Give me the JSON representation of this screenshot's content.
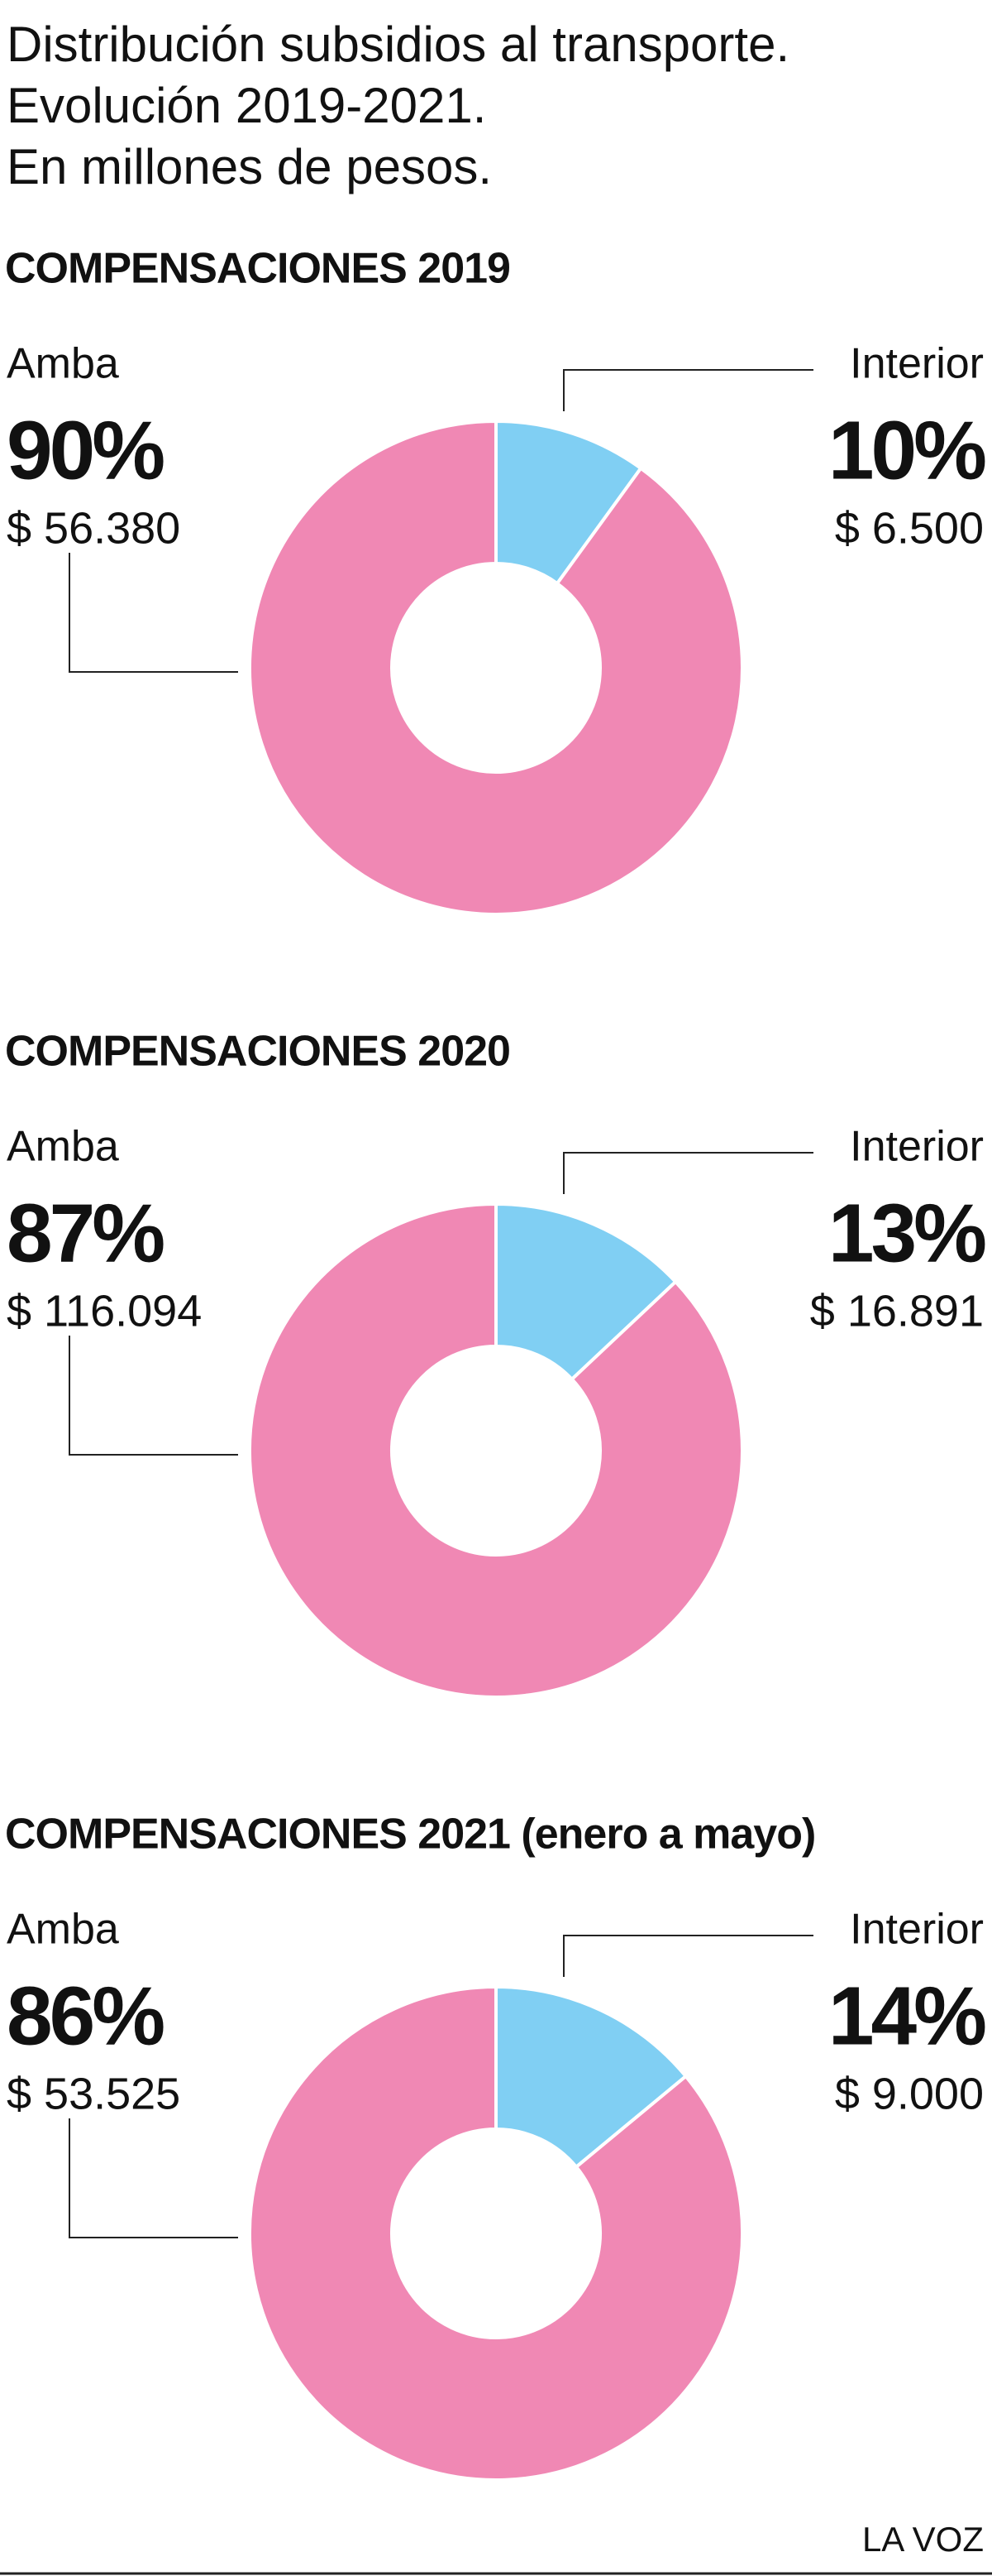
{
  "title_lines": [
    "Distribución subsidios al transporte.",
    "Evolución 2019-2021.",
    "En millones de pesos."
  ],
  "source": "LA VOZ",
  "chart_data": [
    {
      "type": "donut",
      "title": "COMPENSACIONES 2019",
      "categories": [
        "Amba",
        "Interior"
      ],
      "values": [
        90,
        10
      ],
      "value_labels": [
        "90%",
        "10%"
      ],
      "amounts": [
        56380,
        6500
      ],
      "amount_labels": [
        "$ 56.380",
        "$ 6.500"
      ],
      "colors": [
        "#f088b4",
        "#80cff3"
      ]
    },
    {
      "type": "donut",
      "title": "COMPENSACIONES 2020",
      "categories": [
        "Amba",
        "Interior"
      ],
      "values": [
        87,
        13
      ],
      "value_labels": [
        "87%",
        "13%"
      ],
      "amounts": [
        116094,
        16891
      ],
      "amount_labels": [
        "$ 116.094",
        "$ 16.891"
      ],
      "colors": [
        "#f088b4",
        "#80cff3"
      ]
    },
    {
      "type": "donut",
      "title": "COMPENSACIONES 2021 (enero a mayo)",
      "categories": [
        "Amba",
        "Interior"
      ],
      "values": [
        86,
        14
      ],
      "value_labels": [
        "86%",
        "14%"
      ],
      "amounts": [
        53525,
        9000
      ],
      "amount_labels": [
        "$ 53.525",
        "$ 9.000"
      ],
      "colors": [
        "#f088b4",
        "#80cff3"
      ]
    }
  ]
}
